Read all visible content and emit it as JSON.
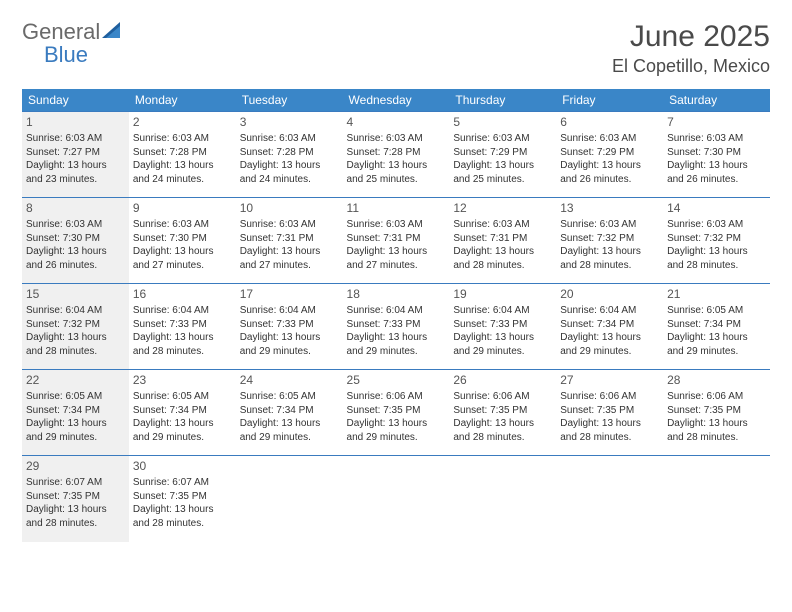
{
  "logo": {
    "general": "General",
    "blue": "Blue"
  },
  "title": {
    "month": "June 2025",
    "location": "El Copetillo, Mexico"
  },
  "colors": {
    "header_bg": "#3a86c8",
    "header_text": "#ffffff",
    "border": "#3a7bbf",
    "shaded": "#f0f0f0",
    "bg": "#ffffff",
    "text": "#333333",
    "logo_gray": "#6a6a6a",
    "logo_blue": "#3a7bbf"
  },
  "weekdays": [
    "Sunday",
    "Monday",
    "Tuesday",
    "Wednesday",
    "Thursday",
    "Friday",
    "Saturday"
  ],
  "days": [
    {
      "n": 1,
      "sunrise": "6:03 AM",
      "sunset": "7:27 PM",
      "dh": 13,
      "dm": 23
    },
    {
      "n": 2,
      "sunrise": "6:03 AM",
      "sunset": "7:28 PM",
      "dh": 13,
      "dm": 24
    },
    {
      "n": 3,
      "sunrise": "6:03 AM",
      "sunset": "7:28 PM",
      "dh": 13,
      "dm": 24
    },
    {
      "n": 4,
      "sunrise": "6:03 AM",
      "sunset": "7:28 PM",
      "dh": 13,
      "dm": 25
    },
    {
      "n": 5,
      "sunrise": "6:03 AM",
      "sunset": "7:29 PM",
      "dh": 13,
      "dm": 25
    },
    {
      "n": 6,
      "sunrise": "6:03 AM",
      "sunset": "7:29 PM",
      "dh": 13,
      "dm": 26
    },
    {
      "n": 7,
      "sunrise": "6:03 AM",
      "sunset": "7:30 PM",
      "dh": 13,
      "dm": 26
    },
    {
      "n": 8,
      "sunrise": "6:03 AM",
      "sunset": "7:30 PM",
      "dh": 13,
      "dm": 26
    },
    {
      "n": 9,
      "sunrise": "6:03 AM",
      "sunset": "7:30 PM",
      "dh": 13,
      "dm": 27
    },
    {
      "n": 10,
      "sunrise": "6:03 AM",
      "sunset": "7:31 PM",
      "dh": 13,
      "dm": 27
    },
    {
      "n": 11,
      "sunrise": "6:03 AM",
      "sunset": "7:31 PM",
      "dh": 13,
      "dm": 27
    },
    {
      "n": 12,
      "sunrise": "6:03 AM",
      "sunset": "7:31 PM",
      "dh": 13,
      "dm": 28
    },
    {
      "n": 13,
      "sunrise": "6:03 AM",
      "sunset": "7:32 PM",
      "dh": 13,
      "dm": 28
    },
    {
      "n": 14,
      "sunrise": "6:03 AM",
      "sunset": "7:32 PM",
      "dh": 13,
      "dm": 28
    },
    {
      "n": 15,
      "sunrise": "6:04 AM",
      "sunset": "7:32 PM",
      "dh": 13,
      "dm": 28
    },
    {
      "n": 16,
      "sunrise": "6:04 AM",
      "sunset": "7:33 PM",
      "dh": 13,
      "dm": 28
    },
    {
      "n": 17,
      "sunrise": "6:04 AM",
      "sunset": "7:33 PM",
      "dh": 13,
      "dm": 29
    },
    {
      "n": 18,
      "sunrise": "6:04 AM",
      "sunset": "7:33 PM",
      "dh": 13,
      "dm": 29
    },
    {
      "n": 19,
      "sunrise": "6:04 AM",
      "sunset": "7:33 PM",
      "dh": 13,
      "dm": 29
    },
    {
      "n": 20,
      "sunrise": "6:04 AM",
      "sunset": "7:34 PM",
      "dh": 13,
      "dm": 29
    },
    {
      "n": 21,
      "sunrise": "6:05 AM",
      "sunset": "7:34 PM",
      "dh": 13,
      "dm": 29
    },
    {
      "n": 22,
      "sunrise": "6:05 AM",
      "sunset": "7:34 PM",
      "dh": 13,
      "dm": 29
    },
    {
      "n": 23,
      "sunrise": "6:05 AM",
      "sunset": "7:34 PM",
      "dh": 13,
      "dm": 29
    },
    {
      "n": 24,
      "sunrise": "6:05 AM",
      "sunset": "7:34 PM",
      "dh": 13,
      "dm": 29
    },
    {
      "n": 25,
      "sunrise": "6:06 AM",
      "sunset": "7:35 PM",
      "dh": 13,
      "dm": 29
    },
    {
      "n": 26,
      "sunrise": "6:06 AM",
      "sunset": "7:35 PM",
      "dh": 13,
      "dm": 28
    },
    {
      "n": 27,
      "sunrise": "6:06 AM",
      "sunset": "7:35 PM",
      "dh": 13,
      "dm": 28
    },
    {
      "n": 28,
      "sunrise": "6:06 AM",
      "sunset": "7:35 PM",
      "dh": 13,
      "dm": 28
    },
    {
      "n": 29,
      "sunrise": "6:07 AM",
      "sunset": "7:35 PM",
      "dh": 13,
      "dm": 28
    },
    {
      "n": 30,
      "sunrise": "6:07 AM",
      "sunset": "7:35 PM",
      "dh": 13,
      "dm": 28
    }
  ],
  "labels": {
    "sunrise": "Sunrise:",
    "sunset": "Sunset:",
    "daylight_prefix": "Daylight:",
    "hours_word": "hours",
    "and_word": "and",
    "minutes_word": "minutes."
  },
  "layout": {
    "start_weekday": 0,
    "shaded_days": [
      1,
      8,
      15,
      22,
      29
    ]
  }
}
